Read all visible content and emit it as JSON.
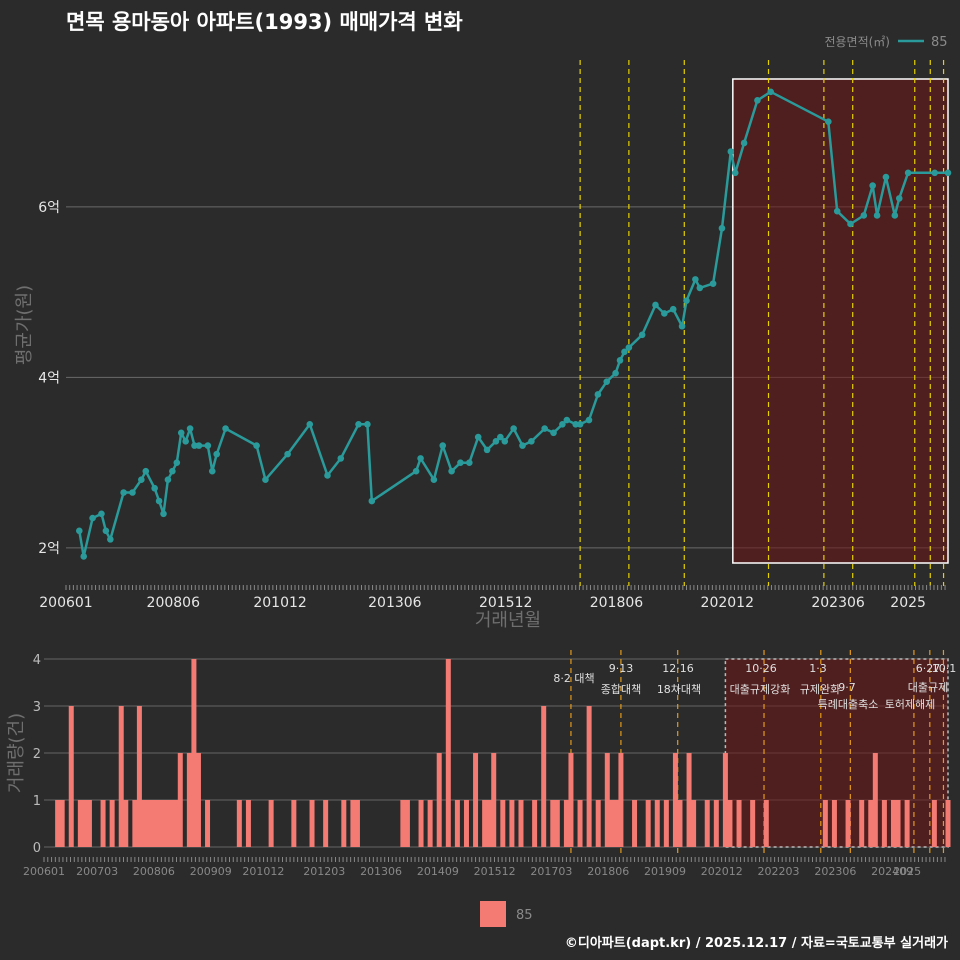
{
  "title": "면목 용마동아 아파트(1993) 매매가격 변화",
  "legend_top": {
    "label": "전용면적(㎡)",
    "value": "85",
    "color": "#2a9a9a"
  },
  "legend_bottom": {
    "value": "85",
    "color": "#f47b74"
  },
  "footer": "©디아파트(dapt.kr) / 2025.12.17 / 자료=국토교통부 실거래가",
  "chart_data": [
    {
      "type": "line",
      "title": "면목 용마동아 아파트(1993) 매매가격 변화",
      "xlabel": "거래년월",
      "ylabel": "평균가(원)",
      "xlim": [
        2006.0,
        2025.9
      ],
      "ylim": [
        1.6,
        7.7
      ],
      "yticks": [
        2,
        4,
        6
      ],
      "ytick_labels": [
        "2억",
        "4억",
        "6억"
      ],
      "xticks": [
        2006.0,
        2008.42,
        2010.83,
        2013.42,
        2015.92,
        2018.42,
        2020.92,
        2023.42,
        2025.0
      ],
      "xtick_labels": [
        "200601",
        "200806",
        "201012",
        "201306",
        "201512",
        "201806",
        "202012",
        "202306",
        "2025"
      ],
      "series": [
        {
          "name": "85",
          "x": [
            2006.3,
            2006.4,
            2006.6,
            2006.8,
            2006.9,
            2007.0,
            2007.3,
            2007.5,
            2007.7,
            2007.8,
            2008.0,
            2008.1,
            2008.2,
            2008.3,
            2008.4,
            2008.5,
            2008.6,
            2008.7,
            2008.8,
            2008.9,
            2009.0,
            2009.2,
            2009.3,
            2009.4,
            2009.6,
            2010.3,
            2010.5,
            2011.0,
            2011.5,
            2011.9,
            2012.2,
            2012.6,
            2012.8,
            2012.9,
            2013.9,
            2014.0,
            2014.3,
            2014.5,
            2014.7,
            2014.9,
            2015.1,
            2015.3,
            2015.5,
            2015.7,
            2015.8,
            2015.9,
            2016.1,
            2016.3,
            2016.5,
            2016.8,
            2017.0,
            2017.2,
            2017.3,
            2017.5,
            2017.6,
            2017.8,
            2018.0,
            2018.2,
            2018.4,
            2018.5,
            2018.6,
            2018.7,
            2019.0,
            2019.3,
            2019.5,
            2019.7,
            2019.9,
            2020.0,
            2020.2,
            2020.3,
            2020.6,
            2020.8,
            2021.0,
            2021.1,
            2021.3,
            2021.6,
            2021.9,
            2023.2,
            2023.4,
            2023.7,
            2024.0,
            2024.2,
            2024.3,
            2024.5,
            2024.7,
            2024.8,
            2025.0,
            2025.6,
            2025.9
          ],
          "values": [
            2.2,
            1.9,
            2.35,
            2.4,
            2.2,
            2.1,
            2.65,
            2.65,
            2.8,
            2.9,
            2.7,
            2.55,
            2.4,
            2.8,
            2.9,
            3.0,
            3.35,
            3.25,
            3.4,
            3.2,
            3.2,
            3.2,
            2.9,
            3.1,
            3.4,
            3.2,
            2.8,
            3.1,
            3.45,
            2.85,
            3.05,
            3.45,
            3.45,
            2.55,
            2.9,
            3.05,
            2.8,
            3.2,
            2.9,
            3.0,
            3.0,
            3.3,
            3.15,
            3.25,
            3.3,
            3.25,
            3.4,
            3.2,
            3.25,
            3.4,
            3.35,
            3.45,
            3.5,
            3.45,
            3.45,
            3.5,
            3.8,
            3.95,
            4.05,
            4.2,
            4.3,
            4.35,
            4.5,
            4.85,
            4.75,
            4.8,
            4.6,
            4.9,
            5.15,
            5.05,
            5.1,
            5.75,
            6.65,
            6.4,
            6.75,
            7.25,
            7.35,
            7.0,
            5.95,
            5.8,
            5.9,
            6.25,
            5.9,
            6.35,
            5.9,
            6.1,
            6.4,
            6.4,
            6.4
          ]
        }
      ],
      "highlight_range": [
        2021.0,
        2025.9
      ],
      "event_lines": [
        2017.6,
        2018.7,
        2019.95,
        2021.85,
        2023.1,
        2023.75,
        2025.15,
        2025.5,
        2025.8
      ]
    },
    {
      "type": "bar",
      "xlabel": "",
      "ylabel": "거래량(건)",
      "xlim": [
        2006.0,
        2025.9
      ],
      "ylim": [
        0,
        4
      ],
      "yticks": [
        0,
        1,
        2,
        3,
        4
      ],
      "ytick_labels": [
        "0",
        "1",
        "2",
        "3",
        "4"
      ],
      "xticks": [
        2006.0,
        2007.17,
        2008.42,
        2009.67,
        2010.83,
        2012.17,
        2013.42,
        2014.67,
        2015.92,
        2017.17,
        2018.42,
        2019.67,
        2020.92,
        2022.17,
        2023.42,
        2024.67,
        2025.0
      ],
      "xtick_labels": [
        "200601",
        "200703",
        "200806",
        "200909",
        "201012",
        "201203",
        "201306",
        "201409",
        "201512",
        "201703",
        "201806",
        "201909",
        "202012",
        "202203",
        "202306",
        "202409",
        "2025"
      ],
      "series": [
        {
          "name": "85",
          "x": [
            2006.3,
            2006.4,
            2006.6,
            2006.8,
            2006.9,
            2007.0,
            2007.3,
            2007.5,
            2007.7,
            2007.8,
            2008.0,
            2008.1,
            2008.2,
            2008.3,
            2008.4,
            2008.5,
            2008.6,
            2008.7,
            2008.8,
            2008.9,
            2009.0,
            2009.2,
            2009.3,
            2009.4,
            2009.6,
            2010.3,
            2010.5,
            2011.0,
            2011.5,
            2011.9,
            2012.2,
            2012.6,
            2012.8,
            2012.9,
            2013.9,
            2014.0,
            2014.3,
            2014.5,
            2014.7,
            2014.9,
            2015.1,
            2015.3,
            2015.5,
            2015.7,
            2015.8,
            2015.9,
            2016.1,
            2016.3,
            2016.5,
            2016.8,
            2017.0,
            2017.2,
            2017.3,
            2017.5,
            2017.6,
            2017.8,
            2018.0,
            2018.2,
            2018.4,
            2018.5,
            2018.6,
            2018.7,
            2019.0,
            2019.3,
            2019.5,
            2019.7,
            2019.9,
            2020.0,
            2020.2,
            2020.3,
            2020.6,
            2020.8,
            2021.0,
            2021.1,
            2021.3,
            2021.6,
            2021.9,
            2023.2,
            2023.4,
            2023.7,
            2024.0,
            2024.2,
            2024.3,
            2024.5,
            2024.7,
            2024.8,
            2025.0,
            2025.6,
            2025.9
          ],
          "values": [
            1,
            1,
            3,
            1,
            1,
            1,
            1,
            1,
            3,
            1,
            1,
            3,
            1,
            1,
            1,
            1,
            1,
            1,
            1,
            1,
            2,
            2,
            4,
            2,
            1,
            1,
            1,
            1,
            1,
            1,
            1,
            1,
            1,
            1,
            1,
            1,
            1,
            1,
            2,
            4,
            1,
            1,
            2,
            1,
            1,
            2,
            1,
            1,
            1,
            1,
            3,
            1,
            1,
            1,
            2,
            1,
            3,
            1,
            2,
            1,
            1,
            2,
            1,
            1,
            1,
            1,
            2,
            1,
            2,
            1,
            1,
            1,
            2,
            1,
            1,
            1,
            1,
            1,
            1,
            1,
            1,
            1,
            2,
            1,
            1,
            1,
            1,
            1,
            1
          ]
        }
      ],
      "highlight_range": [
        2021.0,
        2025.9
      ],
      "event_lines": [
        2017.6,
        2018.7,
        2019.95,
        2021.85,
        2023.1,
        2023.75,
        2025.15,
        2025.5,
        2025.8
      ],
      "annotations": [
        "8·2 대책",
        "9·13",
        "종합대책",
        "12·16",
        "18차대책",
        "10·26",
        "대출규제강화",
        "1·3",
        "규제완화",
        "9·7",
        "특례대출축소",
        "토허제해제",
        "6·27",
        "대출규제",
        "10·1"
      ]
    }
  ]
}
